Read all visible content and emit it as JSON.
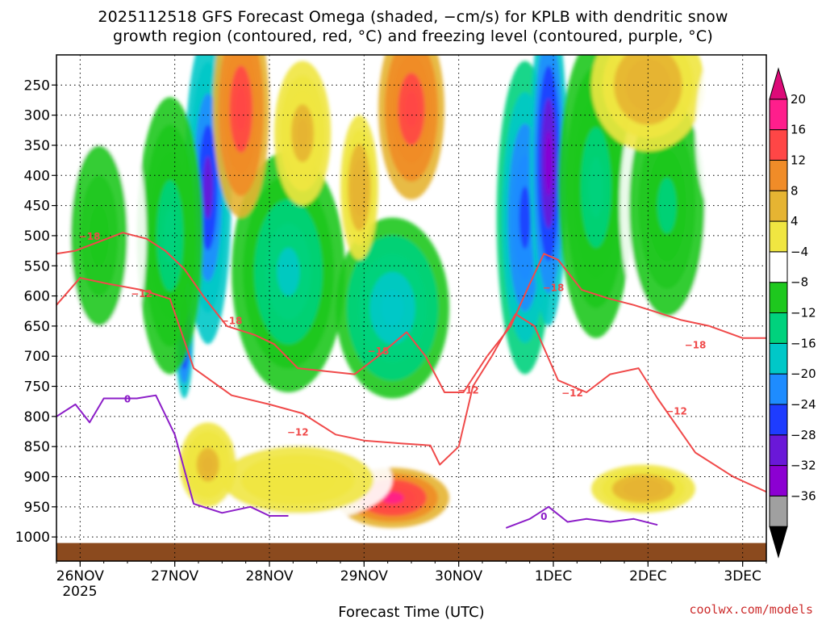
{
  "colors": {
    "dgz_contour": "#f04a4a",
    "freezing_contour": "#8c1ec8",
    "ground": "#8b4a1e",
    "background": "#ffffff"
  },
  "chart_data": {
    "type": "heatmap",
    "title_line1": "2025112518 GFS Forecast Omega (shaded, −cm/s) for KPLB with dendritic snow",
    "title_line2": "growth region (contoured, red, °C) and freezing level (contoured, purple, °C)",
    "xlabel": "Forecast Time (UTC)",
    "ylabel": "",
    "credit": "coolwx.com/models",
    "x_range_days": [
      -0.25,
      7.25
    ],
    "y_range_hpa": [
      200,
      1040
    ],
    "y_ticks": [
      250,
      300,
      350,
      400,
      450,
      500,
      550,
      600,
      650,
      700,
      750,
      800,
      850,
      900,
      950,
      1000
    ],
    "y_tick_labels": [
      "250",
      "300",
      "350",
      "400",
      "450",
      "500",
      "550",
      "600",
      "650",
      "700",
      "750",
      "800",
      "850",
      "900",
      "950",
      "1000"
    ],
    "x_ticks": [
      0,
      1,
      2,
      3,
      4,
      5,
      6,
      7
    ],
    "x_tick_labels": [
      "26NOV",
      "27NOV",
      "28NOV",
      "29NOV",
      "30NOV",
      "1DEC",
      "2DEC",
      "3DEC"
    ],
    "x_sub_label": "2025",
    "grid": true,
    "colorbar": {
      "levels": [
        -36,
        -32,
        -28,
        -24,
        -20,
        -16,
        -12,
        -8,
        -4,
        4,
        8,
        12,
        16,
        20
      ],
      "labels": [
        "20",
        "16",
        "12",
        "8",
        "4",
        "−4",
        "−8",
        "−12",
        "−16",
        "−20",
        "−24",
        "−28",
        "−32",
        "−36"
      ],
      "colors": [
        "#000000",
        "#a0a0a0",
        "#8c00d2",
        "#6a18d8",
        "#1e3cff",
        "#1e8cff",
        "#00c8c8",
        "#00d27d",
        "#1ec81e",
        "#ffffff",
        "#f0e641",
        "#e6b432",
        "#f08c28",
        "#ff4646",
        "#ff1e8c",
        "#dc0a78"
      ]
    },
    "omega_features": [
      {
        "type": "rising",
        "t": 1.35,
        "p": 420,
        "dt": 0.25,
        "dp": 260,
        "value": -26
      },
      {
        "type": "rising",
        "t": 1.1,
        "p": 650,
        "dt": 0.1,
        "dp": 120,
        "value": -30
      },
      {
        "type": "rising",
        "t": 0.95,
        "p": 500,
        "dt": 0.35,
        "dp": 230,
        "value": -10
      },
      {
        "type": "rising",
        "t": 2.2,
        "p": 560,
        "dt": 0.6,
        "dp": 200,
        "value": -12
      },
      {
        "type": "rising",
        "t": 3.3,
        "p": 620,
        "dt": 0.6,
        "dp": 150,
        "value": -14
      },
      {
        "type": "rising",
        "t": 4.7,
        "p": 470,
        "dt": 0.3,
        "dp": 260,
        "value": -22
      },
      {
        "type": "rising",
        "t": 4.95,
        "p": 380,
        "dt": 0.2,
        "dp": 270,
        "value": -30
      },
      {
        "type": "rising",
        "t": 5.45,
        "p": 420,
        "dt": 0.4,
        "dp": 250,
        "value": -10
      },
      {
        "type": "rising",
        "t": 6.2,
        "p": 450,
        "dt": 0.5,
        "dp": 230,
        "value": -8
      },
      {
        "type": "rising",
        "t": 0.2,
        "p": 500,
        "dt": 0.5,
        "dp": 250,
        "value": -6
      },
      {
        "type": "sinking",
        "t": 1.7,
        "p": 290,
        "dt": 0.3,
        "dp": 180,
        "value": 20
      },
      {
        "type": "sinking",
        "t": 2.35,
        "p": 330,
        "dt": 0.3,
        "dp": 120,
        "value": 10
      },
      {
        "type": "sinking",
        "t": 3.5,
        "p": 290,
        "dt": 0.35,
        "dp": 150,
        "value": 20
      },
      {
        "type": "sinking",
        "t": 2.95,
        "p": 420,
        "dt": 0.2,
        "dp": 120,
        "value": 12
      },
      {
        "type": "sinking",
        "t": 3.3,
        "p": 935,
        "dt": 0.6,
        "dp": 50,
        "value": 22
      },
      {
        "type": "sinking",
        "t": 2.3,
        "p": 905,
        "dt": 1.0,
        "dp": 70,
        "value": 8
      },
      {
        "type": "sinking",
        "t": 1.35,
        "p": 880,
        "dt": 0.3,
        "dp": 70,
        "value": 10
      },
      {
        "type": "sinking",
        "t": 6.0,
        "p": 250,
        "dt": 0.6,
        "dp": 110,
        "value": 12
      },
      {
        "type": "sinking",
        "t": 5.95,
        "p": 920,
        "dt": 0.55,
        "dp": 40,
        "value": 12
      },
      {
        "type": "sinking",
        "t": 6.8,
        "p": 330,
        "dt": 0.3,
        "dp": 150,
        "value": 4
      }
    ],
    "series": [
      {
        "name": "-18",
        "color": "#f04a4a",
        "label": "−18",
        "t": [
          -0.25,
          -0.05,
          0.2,
          0.45,
          0.7,
          0.9,
          1.1,
          1.3,
          1.55,
          1.85,
          2.05,
          2.3,
          2.6,
          2.9,
          3.15,
          3.45,
          3.65,
          3.85,
          4.05,
          4.3,
          4.55,
          4.75,
          4.9,
          5.05,
          5.3,
          5.6,
          5.85,
          6.05,
          6.35,
          6.65,
          7.0,
          7.25
        ],
        "p": [
          530,
          525,
          510,
          495,
          505,
          525,
          555,
          600,
          650,
          665,
          680,
          720,
          725,
          730,
          700,
          660,
          700,
          760,
          760,
          700,
          650,
          580,
          530,
          540,
          590,
          605,
          615,
          625,
          640,
          650,
          670,
          670
        ],
        "labels": [
          {
            "t": 0.1,
            "p": 500,
            "text": "−18"
          },
          {
            "t": 1.6,
            "p": 640,
            "text": "−18"
          },
          {
            "t": 3.15,
            "p": 690,
            "text": "−18"
          },
          {
            "t": 5.0,
            "p": 585,
            "text": "−18"
          },
          {
            "t": 6.5,
            "p": 680,
            "text": "−18"
          }
        ]
      },
      {
        "name": "-12",
        "color": "#f04a4a",
        "label": "−12",
        "t": [
          -0.25,
          0.0,
          0.3,
          0.65,
          0.95,
          1.2,
          1.6,
          2.0,
          2.35,
          2.7,
          3.0,
          3.4,
          3.7,
          3.8,
          4.0,
          4.15,
          4.35,
          4.6,
          4.8,
          5.05,
          5.35,
          5.6,
          5.9,
          6.1,
          6.5,
          6.9,
          7.25
        ],
        "p": [
          615,
          570,
          580,
          590,
          605,
          720,
          765,
          780,
          795,
          830,
          840,
          845,
          848,
          880,
          850,
          750,
          700,
          630,
          650,
          740,
          760,
          730,
          720,
          770,
          860,
          900,
          925
        ],
        "labels": [
          {
            "t": 0.65,
            "p": 595,
            "text": "−12"
          },
          {
            "t": 2.3,
            "p": 825,
            "text": "−12"
          },
          {
            "t": 4.1,
            "p": 755,
            "text": "−12"
          },
          {
            "t": 5.2,
            "p": 760,
            "text": "−12"
          },
          {
            "t": 6.3,
            "p": 790,
            "text": "−12"
          }
        ]
      },
      {
        "name": "0",
        "color": "#8c1ec8",
        "label": "0",
        "t": [
          -0.25,
          -0.05,
          0.1,
          0.25,
          0.4,
          0.6,
          0.8,
          1.0,
          1.2,
          1.5,
          1.8,
          2.0,
          2.2
        ],
        "p": [
          800,
          780,
          810,
          770,
          770,
          770,
          765,
          830,
          945,
          960,
          950,
          965,
          965
        ],
        "labels": [
          {
            "t": 0.5,
            "p": 770,
            "text": "0"
          }
        ]
      },
      {
        "name": "0b",
        "color": "#8c1ec8",
        "label": "0",
        "t": [
          4.5,
          4.75,
          4.95,
          5.15,
          5.35,
          5.6,
          5.85,
          6.1
        ],
        "p": [
          985,
          970,
          950,
          975,
          970,
          975,
          970,
          980
        ],
        "labels": [
          {
            "t": 4.9,
            "p": 965,
            "text": "0"
          }
        ]
      }
    ]
  }
}
